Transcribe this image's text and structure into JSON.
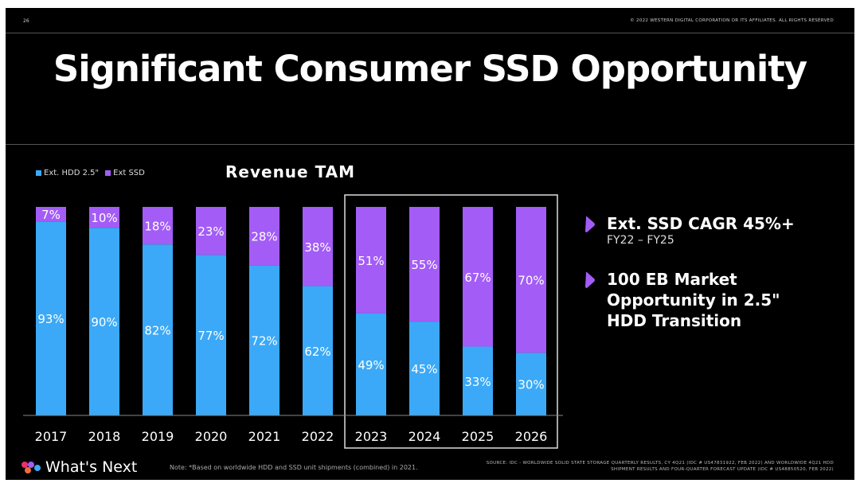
{
  "header": {
    "page_number": "26",
    "copyright": "© 2022 WESTERN DIGITAL CORPORATION OR ITS AFFILIATES. ALL RIGHTS RESERVED"
  },
  "title": "Significant Consumer SSD Opportunity",
  "colors": {
    "hdd": "#3ba9f7",
    "ssd": "#a35cf6",
    "background": "#000000"
  },
  "chart_data": {
    "type": "bar",
    "stacked": true,
    "percent": true,
    "title": "Revenue TAM",
    "categories": [
      "2017",
      "2018",
      "2019",
      "2020",
      "2021",
      "2022",
      "2023",
      "2024",
      "2025",
      "2026"
    ],
    "series": [
      {
        "name": "Ext. HDD 2.5\"",
        "values": [
          93,
          90,
          82,
          77,
          72,
          62,
          49,
          45,
          33,
          30
        ]
      },
      {
        "name": "Ext SSD",
        "values": [
          7,
          10,
          18,
          23,
          28,
          38,
          51,
          55,
          67,
          70
        ]
      }
    ],
    "ylim": [
      0,
      100
    ],
    "highlighted_categories": [
      "2023",
      "2024",
      "2025",
      "2026"
    ],
    "legend": "top-left"
  },
  "bullets": [
    {
      "text": "Ext. SSD CAGR 45%+",
      "sub": "FY22 – FY25"
    },
    {
      "text": "100 EB Market Opportunity in 2.5\" HDD Transition"
    }
  ],
  "footer": {
    "brand": "What's Next",
    "note": "Note: *Based on worldwide HDD and SSD unit shipments (combined) in 2021.",
    "source": "SOURCE: IDC - WORLDWIDE SOLID STATE STORAGE QUARTERLY RESULTS, CY 4Q21 (IDC # US47831922, FEB 2022) AND WORLDWIDE 4Q21 HDD SHIPMENT RESULTS AND FOUR-QUARTER FORECAST UPDATE (IDC # US48850520, FEB 2022)"
  }
}
